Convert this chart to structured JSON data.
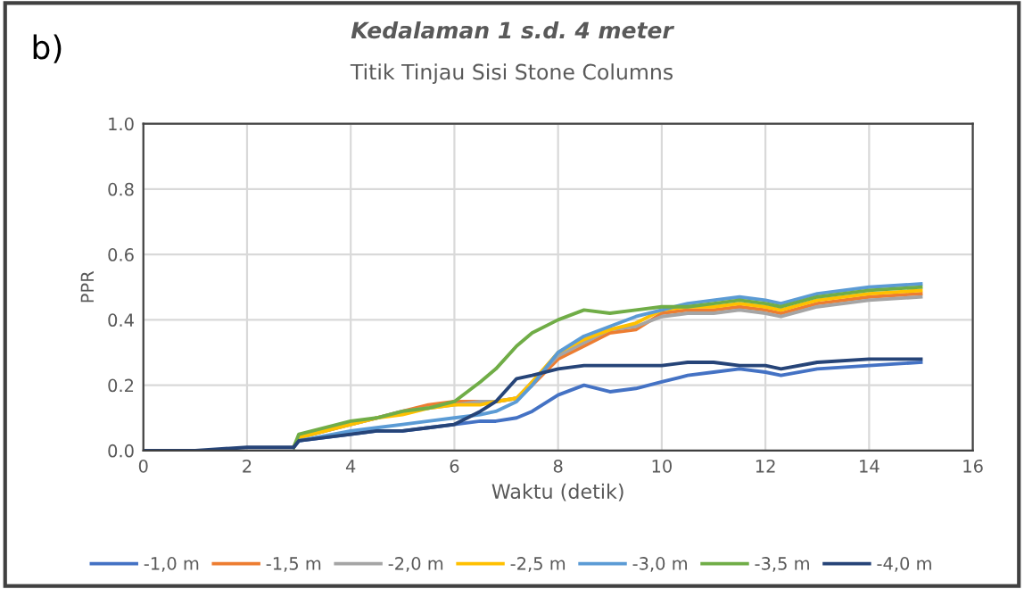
{
  "chart_data": {
    "type": "line",
    "title": "Kedalaman 1 s.d. 4 meter",
    "subtitle": "Titik Tinjau Sisi Stone Columns",
    "xlabel": "Waktu (detik)",
    "ylabel": "PPR",
    "annotations": [
      "b)"
    ],
    "xlim": [
      0,
      16
    ],
    "xticks": [
      0,
      2,
      4,
      6,
      8,
      10,
      12,
      14,
      16
    ],
    "ylim": [
      0,
      1
    ],
    "yticks": [
      {
        "value": 0,
        "label": "0.0"
      },
      {
        "value": 0.2,
        "label": "0.2"
      },
      {
        "value": 0.4,
        "label": "0.4"
      },
      {
        "value": 0.6,
        "label": "0.6"
      },
      {
        "value": 0.8,
        "label": "0.8"
      },
      {
        "value": 1,
        "label": "1.0"
      }
    ],
    "grid": true,
    "legend": "bottom",
    "x": [
      0,
      1,
      2,
      2.9,
      3,
      4,
      4.5,
      5,
      5.5,
      6,
      6.5,
      6.8,
      7.2,
      7.5,
      8,
      8.5,
      9,
      9.5,
      10,
      10.5,
      11,
      11.5,
      12,
      12.3,
      13,
      14,
      15
    ],
    "series": [
      {
        "name": "-1,0 m",
        "color": "#4472c4",
        "values": [
          null,
          null,
          null,
          0.01,
          0.03,
          0.05,
          0.06,
          0.06,
          0.07,
          0.08,
          0.09,
          0.09,
          0.1,
          0.12,
          0.17,
          0.2,
          0.18,
          0.19,
          0.21,
          0.23,
          0.24,
          0.25,
          0.24,
          0.23,
          0.25,
          0.26,
          0.27
        ]
      },
      {
        "name": "-1,5 m",
        "color": "#ed7d31",
        "values": [
          null,
          null,
          null,
          0.01,
          0.04,
          0.08,
          0.1,
          0.12,
          0.14,
          0.15,
          0.15,
          0.15,
          0.16,
          0.2,
          0.28,
          0.32,
          0.36,
          0.37,
          0.42,
          0.43,
          0.43,
          0.44,
          0.43,
          0.42,
          0.45,
          0.47,
          0.48
        ]
      },
      {
        "name": "-2,0 m",
        "color": "#a5a5a5",
        "values": [
          null,
          null,
          null,
          0.01,
          0.04,
          0.08,
          0.1,
          0.12,
          0.13,
          0.14,
          0.15,
          0.15,
          0.16,
          0.21,
          0.29,
          0.33,
          0.37,
          0.38,
          0.41,
          0.42,
          0.42,
          0.43,
          0.42,
          0.41,
          0.44,
          0.46,
          0.47
        ]
      },
      {
        "name": "-2,5 m",
        "color": "#ffc000",
        "values": [
          null,
          null,
          null,
          0.01,
          0.04,
          0.08,
          0.1,
          0.11,
          0.13,
          0.14,
          0.14,
          0.15,
          0.16,
          0.21,
          0.3,
          0.34,
          0.37,
          0.39,
          0.43,
          0.44,
          0.44,
          0.45,
          0.44,
          0.43,
          0.46,
          0.48,
          0.49
        ]
      },
      {
        "name": "-3,0 m",
        "color": "#5b9bd5",
        "values": [
          null,
          null,
          null,
          0.01,
          0.03,
          0.06,
          0.07,
          0.08,
          0.09,
          0.1,
          0.11,
          0.12,
          0.15,
          0.2,
          0.3,
          0.35,
          0.38,
          0.41,
          0.43,
          0.45,
          0.46,
          0.47,
          0.46,
          0.45,
          0.48,
          0.5,
          0.51
        ]
      },
      {
        "name": "-3,5 m",
        "color": "#70ad47",
        "values": [
          null,
          null,
          null,
          0.01,
          0.05,
          0.09,
          0.1,
          0.12,
          0.13,
          0.15,
          0.21,
          0.25,
          0.32,
          0.36,
          0.4,
          0.43,
          0.42,
          0.43,
          0.44,
          0.44,
          0.45,
          0.46,
          0.45,
          0.44,
          0.47,
          0.49,
          0.5
        ]
      },
      {
        "name": "-4,0 m",
        "color": "#264478",
        "values": [
          0,
          0,
          0.01,
          0.01,
          0.03,
          0.05,
          0.06,
          0.06,
          0.07,
          0.08,
          0.12,
          0.15,
          0.22,
          0.23,
          0.25,
          0.26,
          0.26,
          0.26,
          0.26,
          0.27,
          0.27,
          0.26,
          0.26,
          0.25,
          0.27,
          0.28,
          0.28
        ]
      }
    ]
  }
}
